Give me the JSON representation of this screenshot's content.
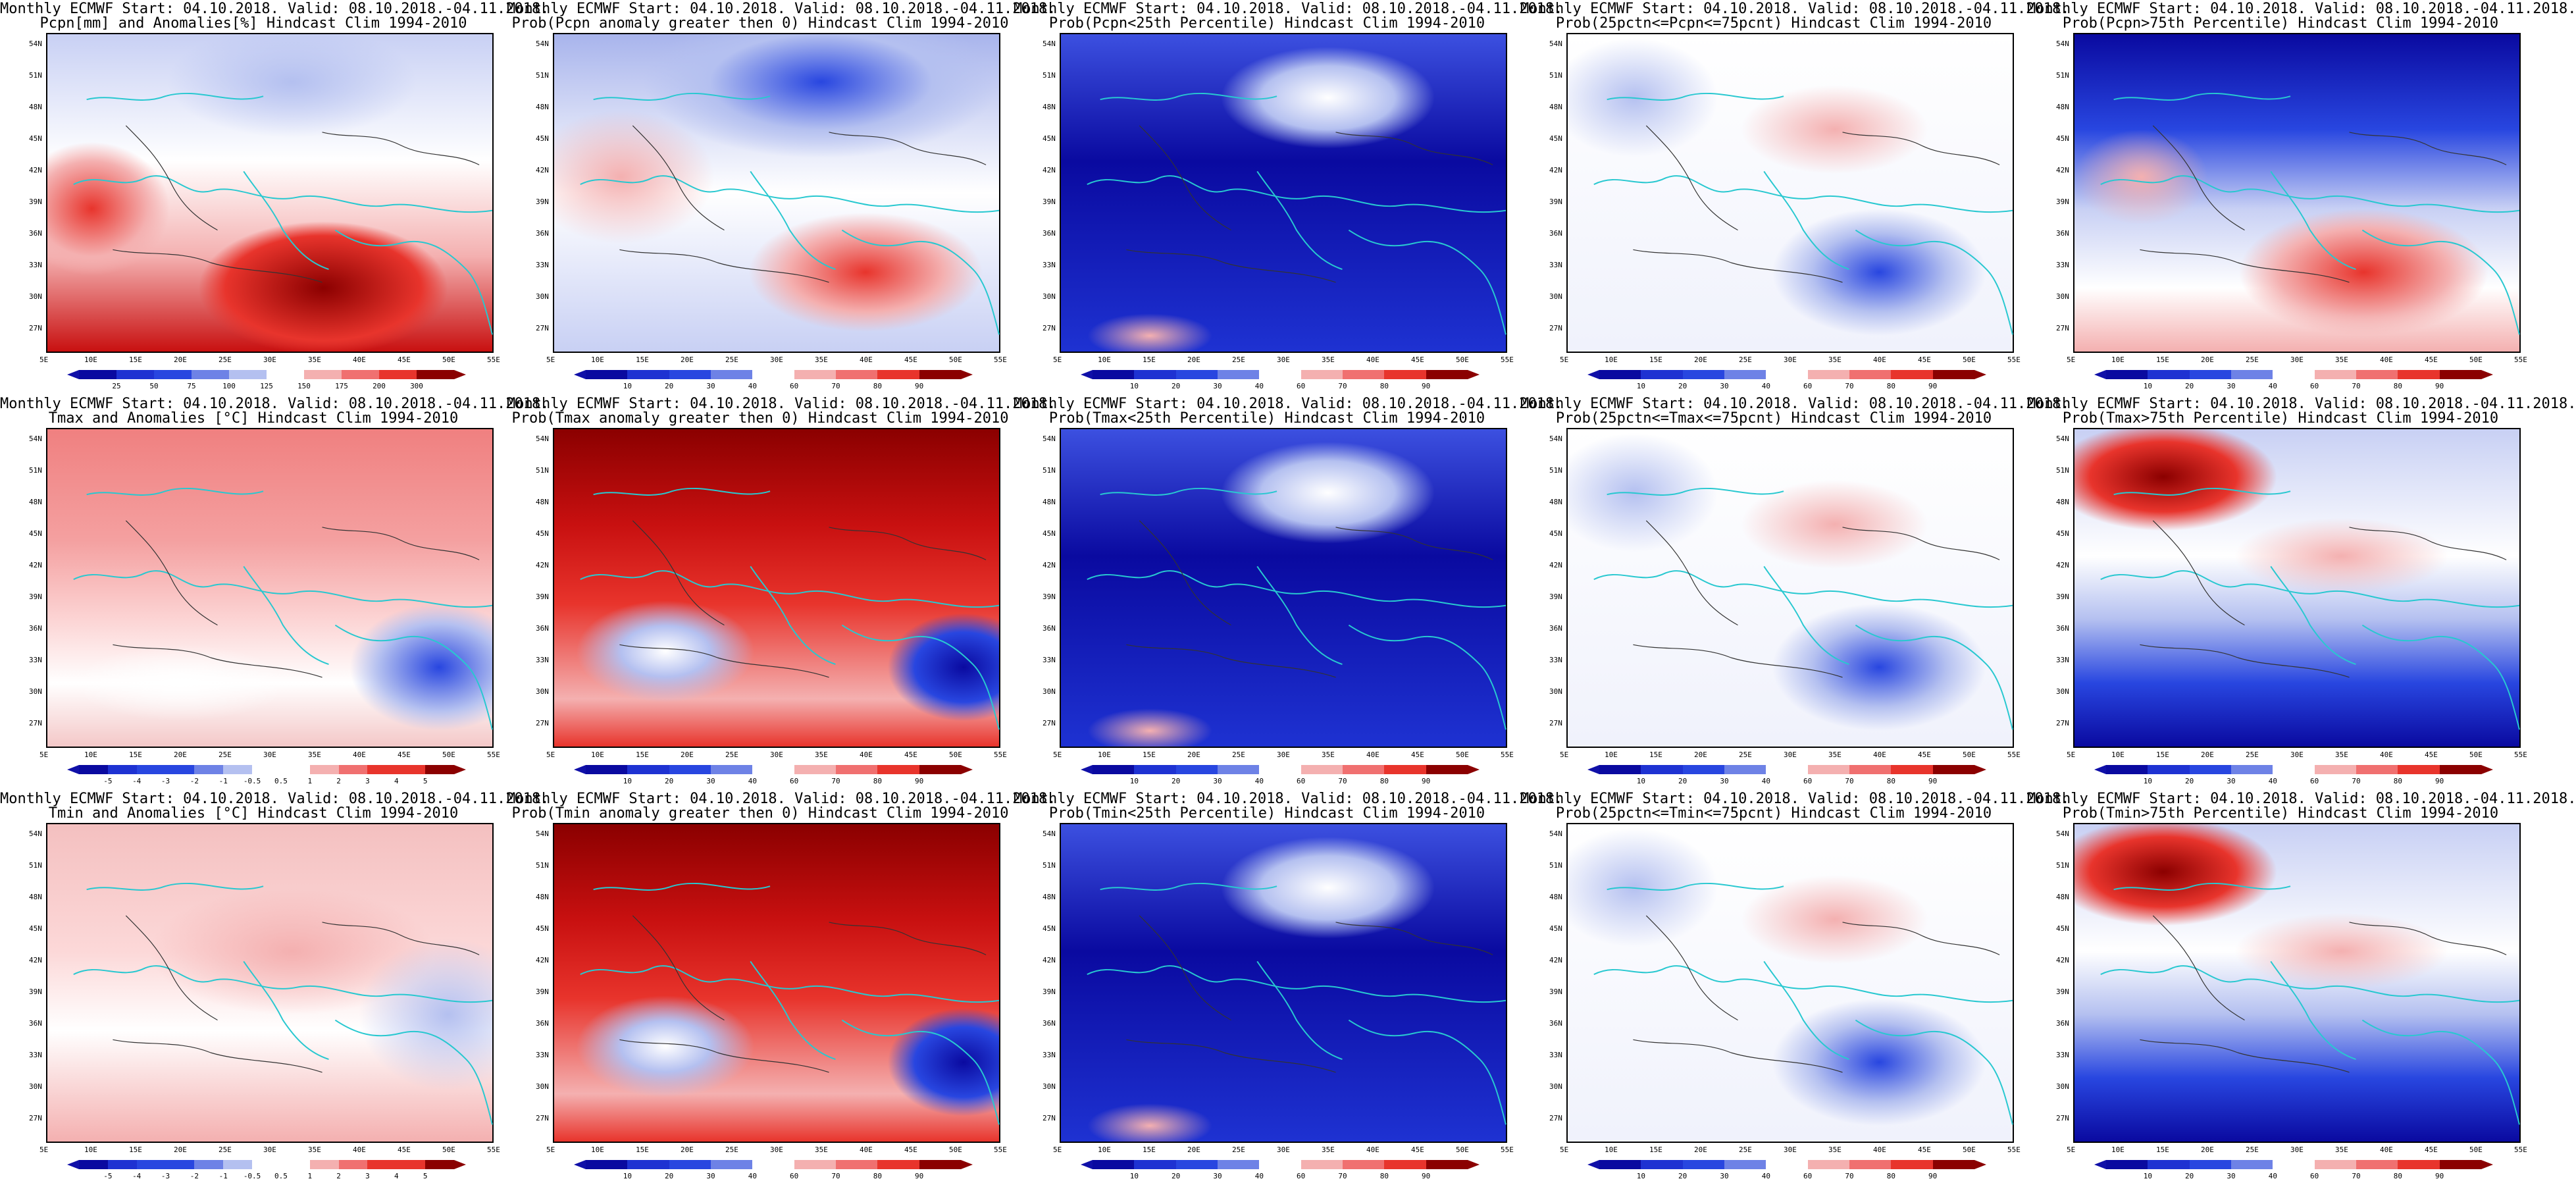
{
  "panels": [
    {
      "title1": "Monthly ECMWF Start: 04.10.2018. Valid: 08.10.2018.-04.11.2018.",
      "title2": "Pcpn[mm] and Anomalies[%] Hindcast Clim 1994-2010",
      "scheme": "precip-anom",
      "cbar": [
        "25",
        "50",
        "75",
        "100",
        "125",
        "150",
        "175",
        "200",
        "300"
      ]
    },
    {
      "title1": "Monthly ECMWF Start: 04.10.2018. Valid: 08.10.2018.-04.11.2018.",
      "title2": "Prob(Pcpn anomaly greater then 0) Hindcast Clim 1994-2010",
      "scheme": "prob-mixed",
      "cbar": [
        "10",
        "20",
        "30",
        "40",
        "60",
        "70",
        "80",
        "90"
      ]
    },
    {
      "title1": "Monthly ECMWF Start: 04.10.2018. Valid: 08.10.2018.-04.11.2018.",
      "title2": "Prob(Pcpn<25th Percentile) Hindcast Clim 1994-2010",
      "scheme": "prob-blue",
      "cbar": [
        "10",
        "20",
        "30",
        "40",
        "60",
        "70",
        "80",
        "90"
      ]
    },
    {
      "title1": "Monthly ECMWF Start: 04.10.2018. Valid: 08.10.2018.-04.11.2018.",
      "title2": "Prob(25pctn<=Pcpn<=75pcnt) Hindcast Clim 1994-2010",
      "scheme": "prob-white",
      "cbar": [
        "10",
        "20",
        "30",
        "40",
        "60",
        "70",
        "80",
        "90"
      ]
    },
    {
      "title1": "Monthly ECMWF Start: 04.10.2018. Valid: 08.10.2018.-04.11.2018.",
      "title2": "Prob(Pcpn>75th Percentile) Hindcast Clim 1994-2010",
      "scheme": "prob-bluetop",
      "cbar": [
        "10",
        "20",
        "30",
        "40",
        "60",
        "70",
        "80",
        "90"
      ]
    },
    {
      "title1": "Monthly ECMWF Start: 04.10.2018. Valid: 08.10.2018.-04.11.2018.",
      "title2": "Tmax and Anomalies [°C] Hindcast Clim 1994-2010",
      "scheme": "temp-anom",
      "cbar": [
        "-5",
        "-4",
        "-3",
        "-2",
        "-1",
        "-0.5",
        "0.5",
        "1",
        "2",
        "3",
        "4",
        "5"
      ]
    },
    {
      "title1": "Monthly ECMWF Start: 04.10.2018. Valid: 08.10.2018.-04.11.2018.",
      "title2": "Prob(Tmax anomaly greater then 0) Hindcast Clim 1994-2010",
      "scheme": "prob-red",
      "cbar": [
        "10",
        "20",
        "30",
        "40",
        "60",
        "70",
        "80",
        "90"
      ]
    },
    {
      "title1": "Monthly ECMWF Start: 04.10.2018. Valid: 08.10.2018.-04.11.2018.",
      "title2": "Prob(Tmax<25th Percentile) Hindcast Clim 1994-2010",
      "scheme": "prob-blue",
      "cbar": [
        "10",
        "20",
        "30",
        "40",
        "60",
        "70",
        "80",
        "90"
      ]
    },
    {
      "title1": "Monthly ECMWF Start: 04.10.2018. Valid: 08.10.2018.-04.11.2018.",
      "title2": "Prob(25pctn<=Tmax<=75pcnt) Hindcast Clim 1994-2010",
      "scheme": "prob-white",
      "cbar": [
        "10",
        "20",
        "30",
        "40",
        "60",
        "70",
        "80",
        "90"
      ]
    },
    {
      "title1": "Monthly ECMWF Start: 04.10.2018. Valid: 08.10.2018.-04.11.2018.",
      "title2": "Prob(Tmax>75th Percentile) Hindcast Clim 1994-2010",
      "scheme": "prob-redtop",
      "cbar": [
        "10",
        "20",
        "30",
        "40",
        "60",
        "70",
        "80",
        "90"
      ]
    },
    {
      "title1": "Monthly ECMWF Start: 04.10.2018. Valid: 08.10.2018.-04.11.2018.",
      "title2": "Tmin and Anomalies [°C] Hindcast Clim 1994-2010",
      "scheme": "temp-anom2",
      "cbar": [
        "-5",
        "-4",
        "-3",
        "-2",
        "-1",
        "-0.5",
        "0.5",
        "1",
        "2",
        "3",
        "4",
        "5"
      ]
    },
    {
      "title1": "Monthly ECMWF Start: 04.10.2018. Valid: 08.10.2018.-04.11.2018.",
      "title2": "Prob(Tmin anomaly greater then 0) Hindcast Clim 1994-2010",
      "scheme": "prob-red",
      "cbar": [
        "10",
        "20",
        "30",
        "40",
        "60",
        "70",
        "80",
        "90"
      ]
    },
    {
      "title1": "Monthly ECMWF Start: 04.10.2018. Valid: 08.10.2018.-04.11.2018.",
      "title2": "Prob(Tmin<25th Percentile) Hindcast Clim 1994-2010",
      "scheme": "prob-blue",
      "cbar": [
        "10",
        "20",
        "30",
        "40",
        "60",
        "70",
        "80",
        "90"
      ]
    },
    {
      "title1": "Monthly ECMWF Start: 04.10.2018. Valid: 08.10.2018.-04.11.2018.",
      "title2": "Prob(25pctn<=Tmin<=75pcnt) Hindcast Clim 1994-2010",
      "scheme": "prob-white",
      "cbar": [
        "10",
        "20",
        "30",
        "40",
        "60",
        "70",
        "80",
        "90"
      ]
    },
    {
      "title1": "Monthly ECMWF Start: 04.10.2018. Valid: 08.10.2018.-04.11.2018.",
      "title2": "Prob(Tmin>75th Percentile) Hindcast Clim 1994-2010",
      "scheme": "prob-redtop",
      "cbar": [
        "10",
        "20",
        "30",
        "40",
        "60",
        "70",
        "80",
        "90"
      ]
    }
  ],
  "lat_labels": [
    "54N",
    "51N",
    "48N",
    "45N",
    "42N",
    "39N",
    "36N",
    "33N",
    "30N",
    "27N"
  ],
  "lon_labels": [
    "5E",
    "10E",
    "15E",
    "20E",
    "25E",
    "30E",
    "35E",
    "40E",
    "45E",
    "50E",
    "55E"
  ],
  "colors": {
    "dark_blue": "#0a0aa0",
    "blue": "#2846e0",
    "light_blue": "#b4c0f0",
    "white": "#ffffff",
    "light_red": "#f4b0b0",
    "red": "#e8342c",
    "dark_red": "#8b0000",
    "coast": "#28c8d0"
  }
}
